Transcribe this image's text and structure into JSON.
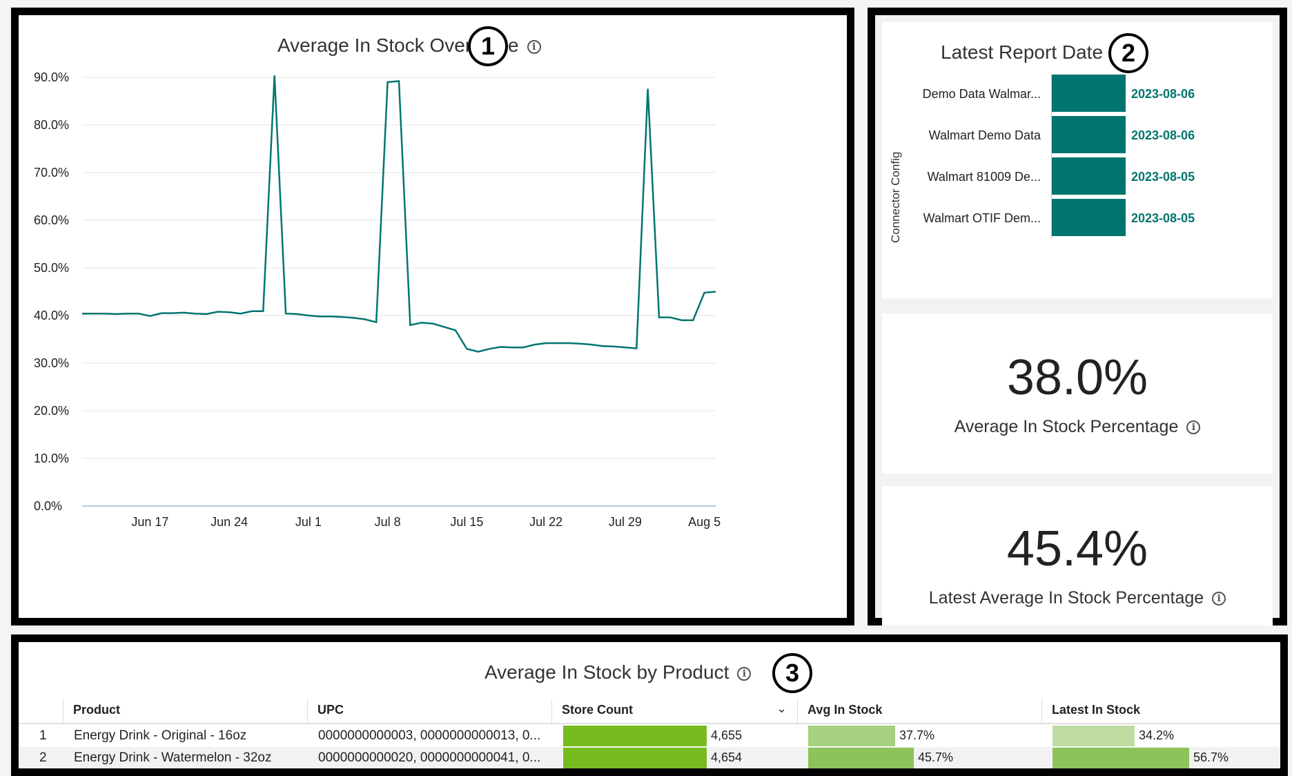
{
  "panel1": {
    "title": "Average In Stock Over Time",
    "badge": "1",
    "chart_data": {
      "type": "line",
      "title": "Average In Stock Over Time",
      "x_tick_labels": [
        "Jun 17",
        "Jun 24",
        "Jul 1",
        "Jul 8",
        "Jul 15",
        "Jul 22",
        "Jul 29",
        "Aug 5"
      ],
      "y_tick_labels": [
        "0.0%",
        "10.0%",
        "20.0%",
        "30.0%",
        "40.0%",
        "50.0%",
        "60.0%",
        "70.0%",
        "80.0%",
        "90.0%"
      ],
      "ylim": [
        0,
        90
      ],
      "grid": true,
      "x_start": "Jun 11",
      "x_end": "Aug 6",
      "series": [
        {
          "color": "#00756f",
          "values": [
            40.4,
            40.4,
            40.4,
            40.3,
            40.4,
            40.4,
            39.9,
            40.5,
            40.5,
            40.6,
            40.4,
            40.3,
            40.8,
            40.7,
            40.4,
            40.9,
            40.9,
            90.4,
            40.4,
            40.3,
            40.0,
            39.8,
            39.8,
            39.7,
            39.5,
            39.2,
            38.6,
            89.0,
            89.2,
            38.0,
            38.5,
            38.3,
            37.6,
            36.9,
            33.0,
            32.4,
            33.0,
            33.4,
            33.3,
            33.3,
            33.9,
            34.2,
            34.2,
            34.2,
            34.1,
            33.9,
            33.6,
            33.5,
            33.3,
            33.1,
            87.6,
            39.6,
            39.6,
            39.0,
            39.0,
            44.8,
            45.0
          ]
        }
      ]
    }
  },
  "panel2": {
    "badge": "2",
    "latest_report": {
      "title": "Latest Report Date",
      "axis_label": "Connector Config",
      "rows": [
        {
          "label": "Demo Data Walmar...",
          "value": "2023-08-06"
        },
        {
          "label": "Walmart Demo Data",
          "value": "2023-08-06"
        },
        {
          "label": "Walmart 81009 De...",
          "value": "2023-08-05"
        },
        {
          "label": "Walmart OTIF Dem...",
          "value": "2023-08-05"
        }
      ]
    },
    "avg_in_stock": {
      "value": "38.0%",
      "label": "Average In Stock Percentage"
    },
    "latest_avg_in_stock": {
      "value": "45.4%",
      "label": "Latest Average In Stock Percentage"
    }
  },
  "panel3": {
    "title": "Average In Stock by Product",
    "badge": "3",
    "headers": {
      "product": "Product",
      "upc": "UPC",
      "store_count": "Store Count",
      "avg_in_stock": "Avg In Stock",
      "latest_in_stock": "Latest In Stock"
    },
    "rows": [
      {
        "index": "1",
        "product": "Energy Drink - Original - 16oz",
        "upc": "0000000000003, 0000000000013, 0...",
        "store_count": "4,655",
        "store_count_fraction": 1.0,
        "avg_in_stock": "37.7%",
        "avg_fraction": 0.377,
        "latest_in_stock": "34.2%",
        "latest_fraction": 0.342
      },
      {
        "index": "2",
        "product": "Energy Drink - Watermelon - 32oz",
        "upc": "0000000000020, 0000000000041, 0...",
        "store_count": "4,654",
        "store_count_fraction": 1.0,
        "avg_in_stock": "45.7%",
        "avg_fraction": 0.457,
        "latest_in_stock": "56.7%",
        "latest_fraction": 0.567
      }
    ],
    "colors": {
      "store_count_bar": "#77bc1f",
      "avg_bar_light": "#a6d17e",
      "latest_bar_light": "#bedca2"
    }
  }
}
